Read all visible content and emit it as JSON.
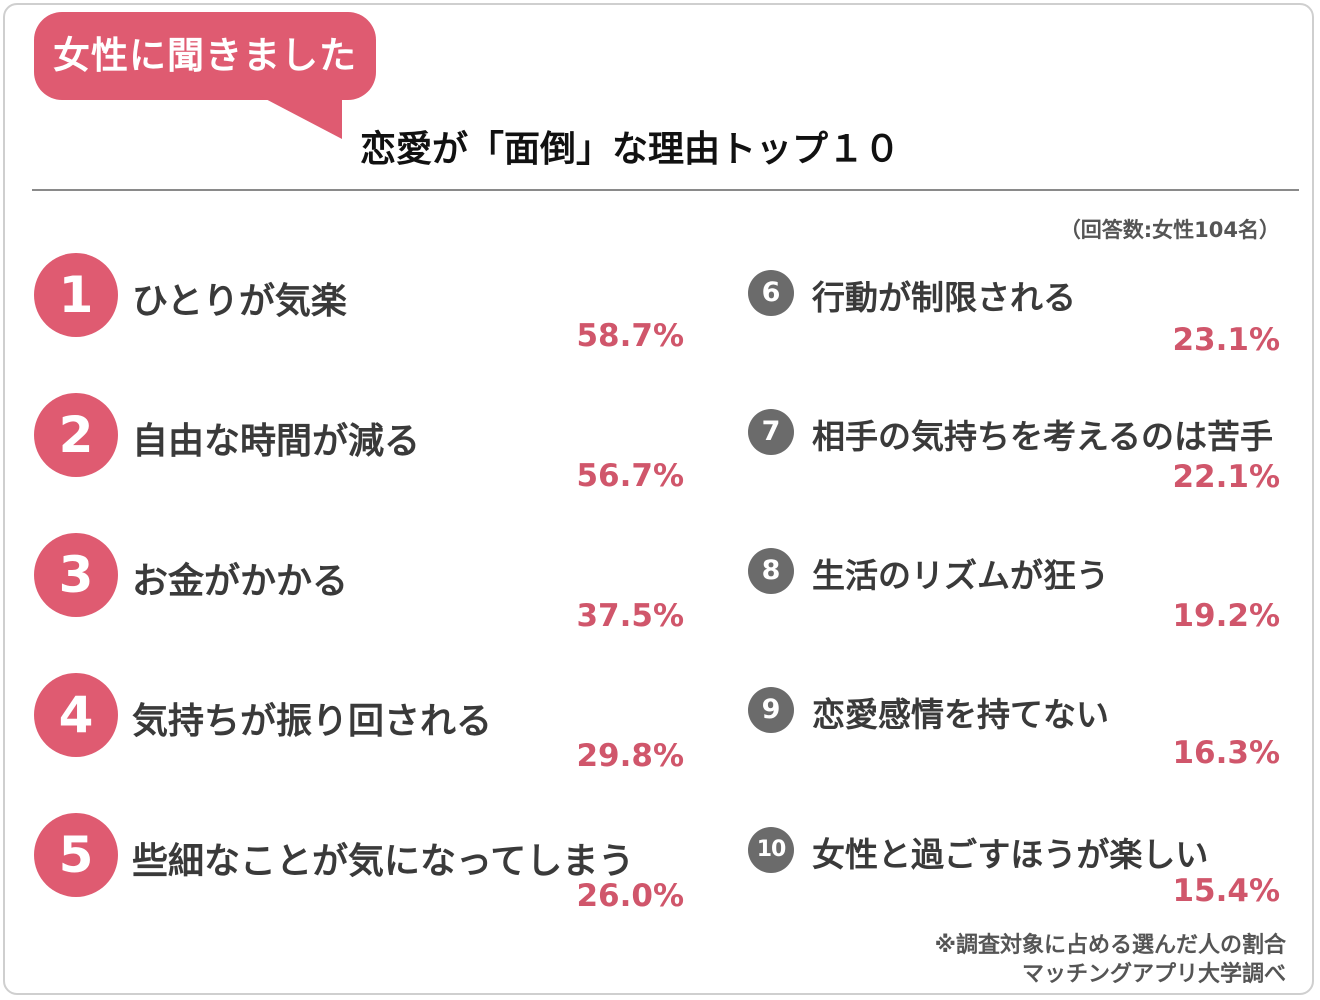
{
  "header": {
    "badge": "女性に聞きました",
    "title": "恋愛が「面倒」な理由トップ１０",
    "respondents": "（回答数:女性104名）"
  },
  "chart_data": {
    "type": "table",
    "title": "恋愛が「面倒」な理由トップ１０",
    "categories": [
      "ひとりが気楽",
      "自由な時間が減る",
      "お金がかかる",
      "気持ちが振り回される",
      "些細なことが気になってしまう",
      "行動が制限される",
      "相手の気持ちを考えるのは苦手",
      "生活のリズムが狂う",
      "恋愛感情を持てない",
      "女性と過ごすほうが楽しい"
    ],
    "values": [
      58.7,
      56.7,
      37.5,
      29.8,
      26.0,
      23.1,
      22.1,
      19.2,
      16.3,
      15.4
    ],
    "items": [
      {
        "rank": "1",
        "label": "ひとりが気楽",
        "pct": "58.7%"
      },
      {
        "rank": "2",
        "label": "自由な時間が減る",
        "pct": "56.7%"
      },
      {
        "rank": "3",
        "label": "お金がかかる",
        "pct": "37.5%"
      },
      {
        "rank": "4",
        "label": "気持ちが振り回される",
        "pct": "29.8%"
      },
      {
        "rank": "5",
        "label": "些細なことが気になってしまう",
        "pct": "26.0%"
      },
      {
        "rank": "6",
        "label": "行動が制限される",
        "pct": "23.1%"
      },
      {
        "rank": "7",
        "label": "相手の気持ちを考えるのは苦手",
        "pct": "22.1%"
      },
      {
        "rank": "8",
        "label": "生活のリズムが狂う",
        "pct": "19.2%"
      },
      {
        "rank": "9",
        "label": "恋愛感情を持てない",
        "pct": "16.3%"
      },
      {
        "rank": "10",
        "label": "女性と過ごすほうが楽しい",
        "pct": "15.4%"
      }
    ],
    "colors": {
      "top5": "#df5b71",
      "rest": "#6b6b6b",
      "percent": "#d0566b"
    }
  },
  "footer": {
    "note": "※調査対象に占める選んだ人の割合",
    "source": "マッチングアプリ大学調べ"
  }
}
